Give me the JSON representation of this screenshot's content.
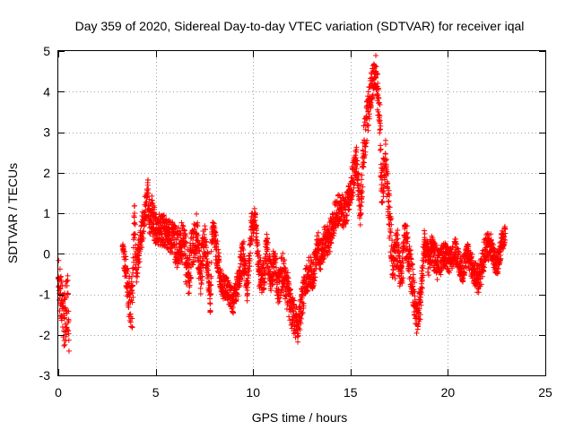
{
  "chart_data": {
    "type": "scatter",
    "title": "Day 359 of 2020, Sidereal Day-to-day VTEC variation (SDTVAR) for receiver iqal",
    "xlabel": "GPS time / hours",
    "ylabel": "SDTVAR / TECUs",
    "xlim": [
      0,
      25
    ],
    "ylim": [
      -3,
      5
    ],
    "xticks": [
      "0",
      "5",
      "10",
      "15",
      "20",
      "25"
    ],
    "yticks": [
      "-3",
      "-2",
      "-1",
      "0",
      "1",
      "2",
      "3",
      "4",
      "5"
    ],
    "grid": true,
    "marker": "+",
    "color": "#ff0000",
    "trend": [
      [
        0.0,
        -0.6,
        0.5
      ],
      [
        0.1,
        -1.0,
        0.6
      ],
      [
        0.2,
        -1.3,
        0.6
      ],
      [
        0.3,
        -1.6,
        0.7
      ],
      [
        0.4,
        -1.4,
        0.8
      ],
      [
        0.5,
        -1.0,
        0.8
      ],
      [
        0.55,
        -2.4,
        0.3
      ],
      [
        3.3,
        0.2,
        0.15
      ],
      [
        3.6,
        -1.0,
        0.6
      ],
      [
        3.8,
        -1.2,
        0.7
      ],
      [
        3.9,
        0.9,
        0.6
      ],
      [
        4.0,
        -0.4,
        0.4
      ],
      [
        4.6,
        1.5,
        0.4
      ],
      [
        4.7,
        0.8,
        0.4
      ],
      [
        4.8,
        1.0,
        0.5
      ],
      [
        5.0,
        0.6,
        0.4
      ],
      [
        5.3,
        0.6,
        0.4
      ],
      [
        5.6,
        0.5,
        0.4
      ],
      [
        5.9,
        0.4,
        0.45
      ],
      [
        6.1,
        0.1,
        0.5
      ],
      [
        6.3,
        0.3,
        0.5
      ],
      [
        6.5,
        0.0,
        0.6
      ],
      [
        6.7,
        -0.5,
        0.6
      ],
      [
        6.9,
        0.2,
        0.5
      ],
      [
        7.1,
        0.5,
        0.5
      ],
      [
        7.3,
        -0.5,
        0.6
      ],
      [
        7.5,
        0.4,
        0.4
      ],
      [
        7.7,
        -0.4,
        0.5
      ],
      [
        7.8,
        -1.4,
        0.4
      ],
      [
        7.9,
        0.6,
        0.3
      ],
      [
        8.1,
        0.2,
        0.4
      ],
      [
        8.4,
        -0.8,
        0.3
      ],
      [
        8.7,
        -0.9,
        0.3
      ],
      [
        9.0,
        -1.2,
        0.3
      ],
      [
        9.2,
        -0.7,
        0.4
      ],
      [
        9.5,
        0.0,
        0.5
      ],
      [
        9.7,
        -0.9,
        0.3
      ],
      [
        9.9,
        0.6,
        0.4
      ],
      [
        10.1,
        0.9,
        0.3
      ],
      [
        10.3,
        -0.4,
        0.4
      ],
      [
        10.5,
        -0.7,
        0.4
      ],
      [
        10.7,
        0.1,
        0.4
      ],
      [
        10.9,
        -0.6,
        0.4
      ],
      [
        11.1,
        -0.2,
        0.4
      ],
      [
        11.3,
        -0.9,
        0.4
      ],
      [
        11.5,
        -0.4,
        0.5
      ],
      [
        11.7,
        -0.8,
        0.5
      ],
      [
        11.9,
        -1.2,
        0.5
      ],
      [
        12.1,
        -1.5,
        0.5
      ],
      [
        12.3,
        -1.8,
        0.4
      ],
      [
        12.5,
        -1.2,
        0.4
      ],
      [
        12.7,
        -0.7,
        0.4
      ],
      [
        12.9,
        -0.4,
        0.4
      ],
      [
        13.1,
        -0.5,
        0.4
      ],
      [
        13.3,
        0.2,
        0.4
      ],
      [
        13.5,
        -0.1,
        0.4
      ],
      [
        13.7,
        0.4,
        0.4
      ],
      [
        13.9,
        0.3,
        0.4
      ],
      [
        14.1,
        0.8,
        0.4
      ],
      [
        14.3,
        1.0,
        0.4
      ],
      [
        14.5,
        1.2,
        0.4
      ],
      [
        14.7,
        0.9,
        0.4
      ],
      [
        14.9,
        1.4,
        0.4
      ],
      [
        15.1,
        1.8,
        0.4
      ],
      [
        15.3,
        2.3,
        0.4
      ],
      [
        15.5,
        1.0,
        0.4
      ],
      [
        15.7,
        2.8,
        0.6
      ],
      [
        15.9,
        3.5,
        0.5
      ],
      [
        16.1,
        4.2,
        0.4
      ],
      [
        16.3,
        4.5,
        0.4
      ],
      [
        16.5,
        3.4,
        0.6
      ],
      [
        16.6,
        1.6,
        0.6
      ],
      [
        16.8,
        2.3,
        0.5
      ],
      [
        17.0,
        0.9,
        0.6
      ],
      [
        17.2,
        -0.4,
        0.5
      ],
      [
        17.4,
        0.2,
        0.5
      ],
      [
        17.6,
        -0.7,
        0.4
      ],
      [
        17.8,
        0.4,
        0.5
      ],
      [
        18.0,
        0.0,
        0.5
      ],
      [
        18.2,
        -0.8,
        0.5
      ],
      [
        18.4,
        -1.6,
        0.4
      ],
      [
        18.6,
        -1.2,
        0.4
      ],
      [
        18.8,
        0.4,
        0.4
      ],
      [
        19.0,
        -0.2,
        0.4
      ],
      [
        19.2,
        0.1,
        0.4
      ],
      [
        19.5,
        -0.3,
        0.4
      ],
      [
        19.8,
        0.0,
        0.3
      ],
      [
        20.1,
        -0.2,
        0.3
      ],
      [
        20.4,
        0.1,
        0.3
      ],
      [
        20.7,
        -0.5,
        0.3
      ],
      [
        21.0,
        0.0,
        0.3
      ],
      [
        21.3,
        -0.4,
        0.3
      ],
      [
        21.6,
        -0.7,
        0.4
      ],
      [
        21.9,
        0.1,
        0.4
      ],
      [
        22.2,
        0.2,
        0.3
      ],
      [
        22.5,
        -0.3,
        0.3
      ],
      [
        22.8,
        0.3,
        0.3
      ],
      [
        22.95,
        0.5,
        0.2
      ]
    ]
  }
}
